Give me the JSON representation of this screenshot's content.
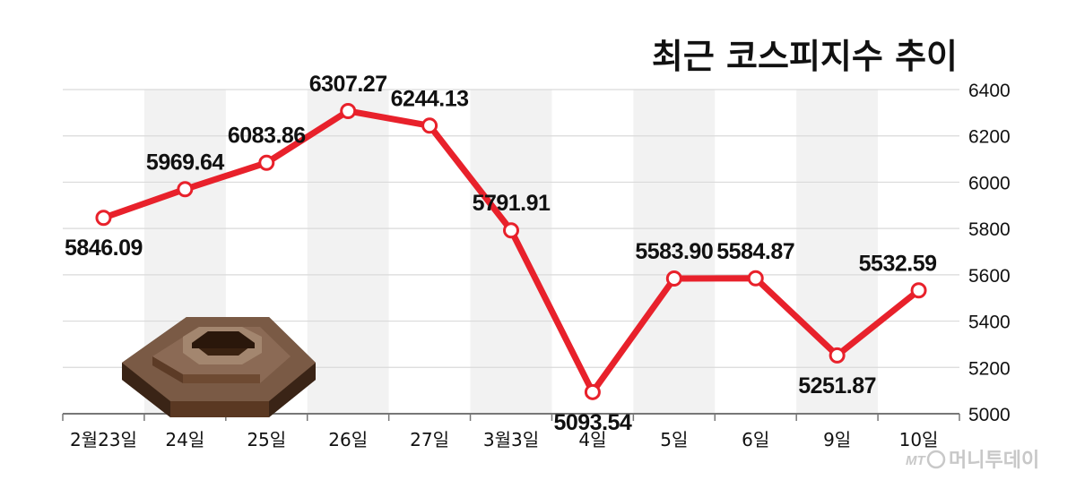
{
  "chart_data": {
    "type": "line",
    "title": "최근 코스피지수 추이",
    "categories": [
      "2월23일",
      "24일",
      "25일",
      "26일",
      "27일",
      "3월3일",
      "4일",
      "5일",
      "6일",
      "9일",
      "10일"
    ],
    "values": [
      5846.09,
      5969.64,
      6083.86,
      6307.27,
      6244.13,
      5791.91,
      5093.54,
      5583.9,
      5584.87,
      5251.87,
      5532.59
    ],
    "value_labels": [
      "5846.09",
      "5969.64",
      "6083.86",
      "6307.27",
      "6244.13",
      "5791.91",
      "5093.54",
      "5583.90",
      "5584.87",
      "5251.87",
      "5532.59"
    ],
    "ylim": [
      5000,
      6400
    ],
    "yticks": [
      5000,
      5200,
      5400,
      5600,
      5800,
      6000,
      6200,
      6400
    ],
    "ytick_labels": [
      "5000",
      "5200",
      "5400",
      "5600",
      "5800",
      "6000",
      "6200",
      "6400"
    ],
    "y_axis_position": "right",
    "grid": true,
    "legend": "none",
    "line_color": "#e8212b",
    "marker_fill": "#ffffff"
  },
  "watermark": {
    "logo": "MT",
    "text": "머니투데이"
  },
  "decoration": {
    "icon": "hexagon-nut-icon"
  }
}
